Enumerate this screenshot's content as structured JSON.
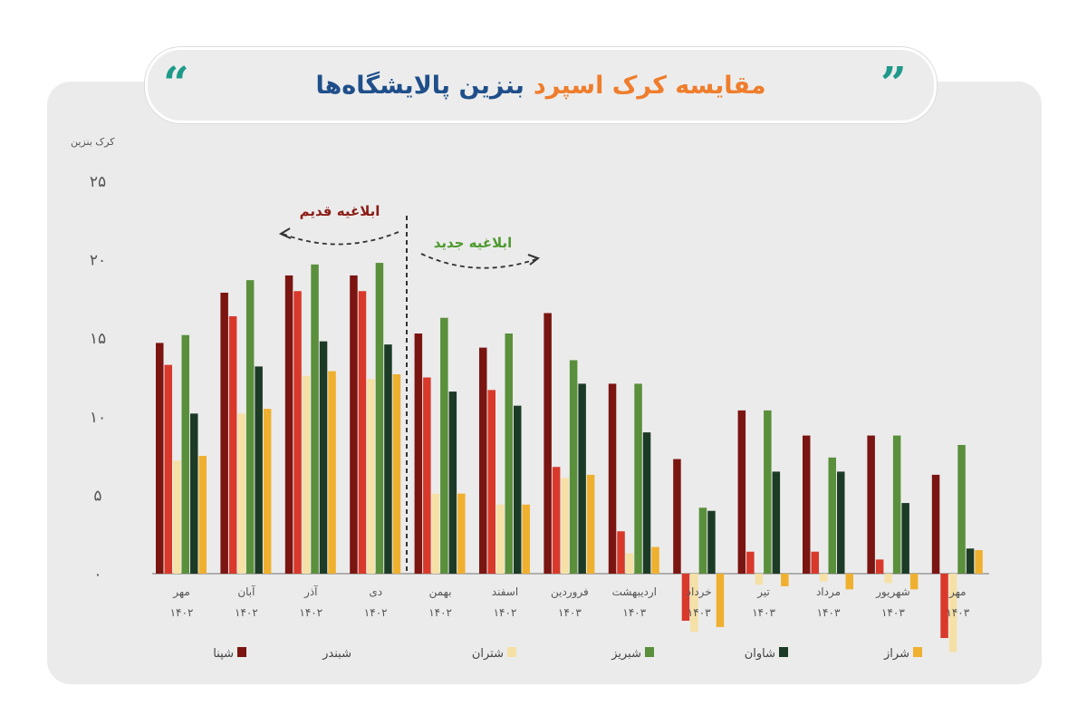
{
  "title": {
    "part1": "مقایسه کرک اسپرد",
    "part2": "بنزین پالایشگاه‌ها",
    "quote_open": "“",
    "quote_close": "”"
  },
  "colors": {
    "accent_orange": "#ef7d2c",
    "accent_blue": "#1f4f8a",
    "quote": "#1f9a8a"
  },
  "chart_data": {
    "type": "bar",
    "title": "مقایسه کرک اسپرد بنزین پالایشگاه‌ها",
    "ylabel": "کرک بنزین",
    "xlabel": "",
    "ylim": [
      -5,
      25
    ],
    "yticks": [
      0,
      5,
      10,
      15,
      20,
      25
    ],
    "ytick_labels": [
      "۰",
      "۵",
      "۱۰",
      "۱۵",
      "۲۰",
      "۲۵"
    ],
    "categories": [
      "مهر",
      "آبان",
      "آذر",
      "دی",
      "بهمن",
      "اسفند",
      "فروردین",
      "اردیبهشت",
      "خرداد",
      "تیر",
      "مرداد",
      "شهریور",
      "مهر"
    ],
    "category_years": [
      "۱۴۰۲",
      "۱۴۰۲",
      "۱۴۰۲",
      "۱۴۰۲",
      "۱۴۰۲",
      "۱۴۰۲",
      "۱۴۰۳",
      "۱۴۰۳",
      "۱۴۰۳",
      "۱۴۰۳",
      "۱۴۰۳",
      "۱۴۰۳",
      "۱۴۰۳"
    ],
    "series": [
      {
        "name": "شپنا",
        "color": "#7a1512",
        "swatch": true,
        "values": [
          14.7,
          17.9,
          19.0,
          19.0,
          15.3,
          14.4,
          16.6,
          12.1,
          7.3,
          10.4,
          8.8,
          8.8,
          6.3
        ]
      },
      {
        "name": "شبندر",
        "color": "#d8392b",
        "swatch": false,
        "values": [
          13.3,
          16.4,
          18.0,
          18.0,
          12.5,
          11.7,
          6.8,
          2.7,
          -3.0,
          1.4,
          1.4,
          0.9,
          -4.1
        ]
      },
      {
        "name": "شتران",
        "color": "#f5e0a6",
        "swatch": true,
        "values": [
          7.2,
          10.2,
          12.6,
          12.4,
          5.1,
          4.4,
          6.1,
          1.3,
          -3.7,
          -0.7,
          -0.5,
          -0.6,
          -5.0
        ]
      },
      {
        "name": "شبریز",
        "color": "#5a8f3c",
        "swatch": true,
        "values": [
          15.2,
          18.7,
          19.7,
          19.8,
          16.3,
          15.3,
          13.6,
          12.1,
          4.2,
          10.4,
          7.4,
          8.8,
          8.2
        ]
      },
      {
        "name": "شاوان",
        "color": "#1c3b26",
        "swatch": true,
        "values": [
          10.2,
          13.2,
          14.8,
          14.6,
          11.6,
          10.7,
          12.1,
          9.0,
          4.0,
          6.5,
          6.5,
          4.5,
          1.6
        ]
      },
      {
        "name": "شراز",
        "color": "#efb02f",
        "swatch": true,
        "values": [
          7.5,
          10.5,
          12.9,
          12.7,
          5.1,
          4.4,
          6.3,
          1.7,
          -3.4,
          -0.8,
          -1.0,
          -1.0,
          1.5
        ]
      }
    ],
    "annotations": [
      {
        "text": "ابلاغیه قدیم",
        "color": "#8b1c16",
        "direction": "left"
      },
      {
        "text": "ابلاغیه جدید",
        "color": "#4e9a2e",
        "direction": "right"
      }
    ],
    "divider_after_category": "دی",
    "legend_position": "bottom",
    "grid": false
  }
}
